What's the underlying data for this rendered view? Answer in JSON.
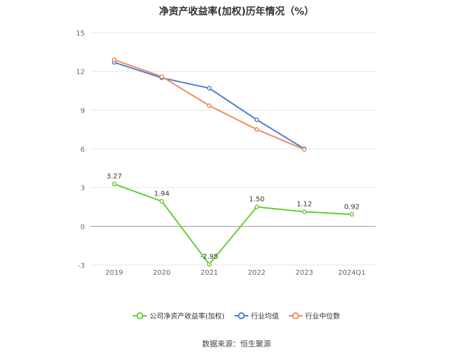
{
  "chart_data": {
    "type": "line",
    "title": "净资产收益率(加权)历年情况（%）",
    "categories": [
      "2019",
      "2020",
      "2021",
      "2022",
      "2023",
      "2024Q1"
    ],
    "ylim": [
      -3,
      15
    ],
    "yticks": [
      -3,
      0,
      3,
      6,
      9,
      12,
      15
    ],
    "grid": true,
    "legend_position": "bottom",
    "series": [
      {
        "name": "公司净资产收益率(加权)",
        "color": "#66cc33",
        "values": [
          3.27,
          1.94,
          -2.95,
          1.5,
          1.12,
          0.92
        ],
        "labels": [
          "3.27",
          "1.94",
          "-2.95",
          "1.50",
          "1.12",
          "0.92"
        ]
      },
      {
        "name": "行业均值",
        "color": "#4a7fdb",
        "values": [
          12.7,
          11.5,
          10.7,
          8.25,
          6.0,
          null
        ]
      },
      {
        "name": "行业中位数",
        "color": "#f08c5a",
        "values": [
          12.9,
          11.6,
          9.35,
          7.5,
          5.95,
          null
        ]
      }
    ],
    "source": "数据来源：恒生聚源"
  }
}
